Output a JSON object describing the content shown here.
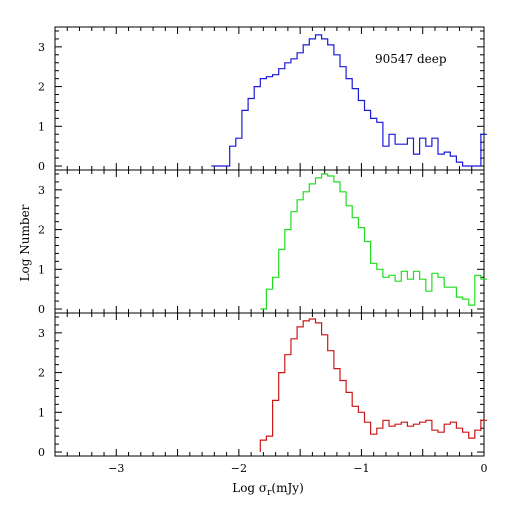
{
  "chart_data": [
    {
      "type": "line",
      "step": true,
      "annotation": "90547 deep",
      "color": "#1a1ad8",
      "xlim": [
        -3.5,
        0
      ],
      "ylim": [
        -0.1,
        3.5
      ],
      "yticks": [
        0,
        1,
        2,
        3
      ],
      "x": [
        -2.2,
        -2.15,
        -2.1,
        -2.05,
        -2.0,
        -1.95,
        -1.9,
        -1.85,
        -1.8,
        -1.75,
        -1.7,
        -1.65,
        -1.6,
        -1.55,
        -1.5,
        -1.45,
        -1.4,
        -1.35,
        -1.3,
        -1.25,
        -1.2,
        -1.15,
        -1.1,
        -1.05,
        -1.0,
        -0.95,
        -0.9,
        -0.85,
        -0.8,
        -0.75,
        -0.7,
        -0.65,
        -0.6,
        -0.55,
        -0.5,
        -0.45,
        -0.4,
        -0.35,
        -0.3,
        -0.25,
        -0.2,
        -0.15,
        -0.1,
        -0.05,
        0.0
      ],
      "y": [
        0,
        0,
        0,
        0.5,
        0.7,
        1.4,
        1.7,
        2.0,
        2.2,
        2.25,
        2.3,
        2.45,
        2.6,
        2.7,
        2.85,
        3.05,
        3.2,
        3.3,
        3.2,
        3.05,
        2.8,
        2.5,
        2.2,
        1.95,
        1.65,
        1.4,
        1.2,
        1.1,
        0.5,
        0.8,
        0.55,
        0.55,
        0.7,
        0.3,
        0.7,
        0.5,
        0.7,
        0.3,
        0.35,
        0.25,
        0.1,
        0,
        0,
        0,
        0.8
      ]
    },
    {
      "type": "line",
      "step": true,
      "color": "#22dd22",
      "xlim": [
        -3.5,
        0
      ],
      "ylim": [
        -0.1,
        3.5
      ],
      "yticks": [
        0,
        1,
        2,
        3
      ],
      "x": [
        -1.8,
        -1.75,
        -1.7,
        -1.65,
        -1.6,
        -1.55,
        -1.5,
        -1.45,
        -1.4,
        -1.35,
        -1.3,
        -1.25,
        -1.2,
        -1.15,
        -1.1,
        -1.05,
        -1.0,
        -0.95,
        -0.9,
        -0.85,
        -0.8,
        -0.75,
        -0.7,
        -0.65,
        -0.6,
        -0.55,
        -0.5,
        -0.45,
        -0.4,
        -0.35,
        -0.3,
        -0.25,
        -0.2,
        -0.15,
        -0.1,
        -0.05,
        0.0
      ],
      "y": [
        0,
        0.5,
        0.8,
        1.5,
        2.0,
        2.45,
        2.75,
        2.95,
        3.15,
        3.3,
        3.4,
        3.35,
        3.2,
        2.95,
        2.6,
        2.3,
        2.05,
        1.7,
        1.15,
        1.0,
        0.8,
        0.85,
        0.7,
        0.95,
        0.75,
        0.95,
        0.75,
        0.45,
        0.9,
        0.8,
        0.55,
        0.55,
        0.3,
        0.25,
        0.1,
        0.85,
        0.75
      ]
    },
    {
      "type": "line",
      "step": true,
      "color": "#cc1818",
      "xlabel": "Log σ_r(mJy)",
      "ylabel": "Log Number",
      "xlim": [
        -3.5,
        0
      ],
      "ylim": [
        -0.1,
        3.5
      ],
      "yticks": [
        0,
        1,
        2,
        3
      ],
      "xticks": [
        -3,
        -2,
        -1,
        0
      ],
      "x": [
        -1.8,
        -1.75,
        -1.7,
        -1.65,
        -1.6,
        -1.55,
        -1.5,
        -1.45,
        -1.4,
        -1.35,
        -1.3,
        -1.25,
        -1.2,
        -1.15,
        -1.1,
        -1.05,
        -1.0,
        -0.95,
        -0.9,
        -0.85,
        -0.8,
        -0.75,
        -0.7,
        -0.65,
        -0.6,
        -0.55,
        -0.5,
        -0.45,
        -0.4,
        -0.35,
        -0.3,
        -0.25,
        -0.2,
        -0.15,
        -0.1,
        -0.05,
        0.0
      ],
      "y": [
        0.3,
        0.4,
        1.3,
        2.0,
        2.45,
        2.85,
        3.15,
        3.3,
        3.35,
        3.25,
        2.95,
        2.55,
        2.1,
        1.8,
        1.5,
        1.15,
        1.0,
        0.75,
        0.45,
        0.6,
        0.8,
        0.65,
        0.7,
        0.75,
        0.65,
        0.7,
        0.75,
        0.8,
        0.55,
        0.5,
        0.7,
        0.75,
        0.6,
        0.5,
        0.35,
        0.55,
        0.8
      ]
    }
  ],
  "labels": {
    "annotation": "90547 deep",
    "ylabel": "Log Number",
    "xlabel_main": "Log σ",
    "xlabel_sub": "r",
    "xlabel_unit": "(mJy)",
    "yticks": [
      "0",
      "1",
      "2",
      "3"
    ],
    "xticks": [
      "−3",
      "−2",
      "−1",
      "0"
    ]
  }
}
